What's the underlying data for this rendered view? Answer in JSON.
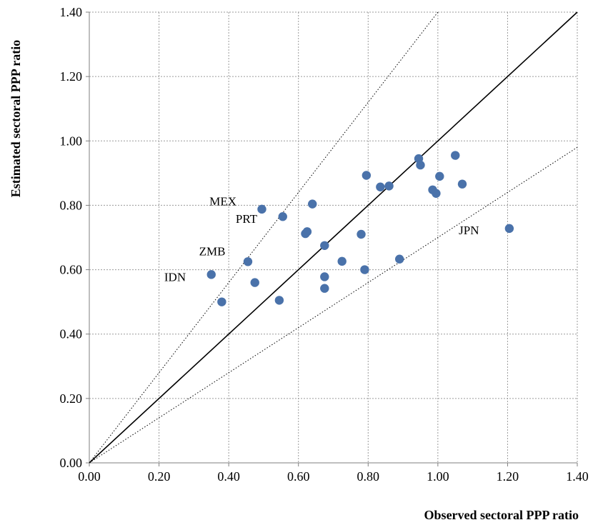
{
  "chart_data": {
    "type": "scatter",
    "xlabel": "Observed sectoral PPP ratio",
    "ylabel": "Estimated sectoral PPP ratio",
    "xlim": [
      0,
      1.4
    ],
    "ylim": [
      0,
      1.4
    ],
    "xticks": [
      "0.00",
      "0.20",
      "0.40",
      "0.60",
      "0.80",
      "1.00",
      "1.20",
      "1.40"
    ],
    "yticks": [
      "0.00",
      "0.20",
      "0.40",
      "0.60",
      "0.80",
      "1.00",
      "1.20",
      "1.40"
    ],
    "grid": true,
    "marker_color": "#4a72aa",
    "reference_lines": [
      {
        "style": "solid",
        "slope": 1.0
      },
      {
        "style": "dotted",
        "slope": 1.4
      },
      {
        "style": "dotted",
        "slope": 0.7
      }
    ],
    "points": [
      {
        "x": 0.35,
        "y": 0.585
      },
      {
        "x": 0.38,
        "y": 0.5
      },
      {
        "x": 0.455,
        "y": 0.625
      },
      {
        "x": 0.475,
        "y": 0.56
      },
      {
        "x": 0.495,
        "y": 0.788
      },
      {
        "x": 0.545,
        "y": 0.505
      },
      {
        "x": 0.555,
        "y": 0.765
      },
      {
        "x": 0.62,
        "y": 0.712
      },
      {
        "x": 0.625,
        "y": 0.718
      },
      {
        "x": 0.64,
        "y": 0.804
      },
      {
        "x": 0.675,
        "y": 0.675
      },
      {
        "x": 0.675,
        "y": 0.578
      },
      {
        "x": 0.675,
        "y": 0.542
      },
      {
        "x": 0.725,
        "y": 0.626
      },
      {
        "x": 0.78,
        "y": 0.71
      },
      {
        "x": 0.79,
        "y": 0.6
      },
      {
        "x": 0.795,
        "y": 0.893
      },
      {
        "x": 0.835,
        "y": 0.857
      },
      {
        "x": 0.86,
        "y": 0.86
      },
      {
        "x": 0.89,
        "y": 0.633
      },
      {
        "x": 0.945,
        "y": 0.945
      },
      {
        "x": 0.95,
        "y": 0.925
      },
      {
        "x": 0.985,
        "y": 0.848
      },
      {
        "x": 0.995,
        "y": 0.837
      },
      {
        "x": 1.005,
        "y": 0.89
      },
      {
        "x": 1.05,
        "y": 0.955
      },
      {
        "x": 1.07,
        "y": 0.866
      },
      {
        "x": 1.205,
        "y": 0.728
      }
    ],
    "annotations": [
      {
        "text": "MEX",
        "x": 0.345,
        "y": 0.8
      },
      {
        "text": "PRT",
        "x": 0.42,
        "y": 0.745
      },
      {
        "text": "ZMB",
        "x": 0.315,
        "y": 0.645
      },
      {
        "text": "IDN",
        "x": 0.215,
        "y": 0.565
      },
      {
        "text": "JPN",
        "x": 1.06,
        "y": 0.71
      }
    ]
  }
}
